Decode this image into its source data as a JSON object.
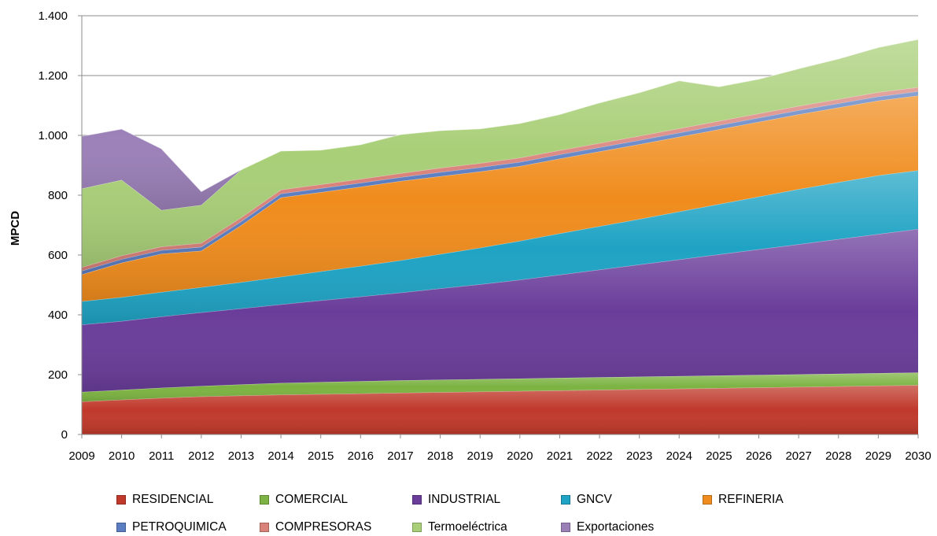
{
  "chart_data": {
    "type": "area",
    "stacked": true,
    "title": "",
    "xlabel": "",
    "ylabel": "MPCD",
    "ylim": [
      0,
      1400
    ],
    "yticks": [
      0,
      200,
      400,
      600,
      800,
      1000,
      1200,
      1400
    ],
    "ytick_labels": [
      "0",
      "200",
      "400",
      "600",
      "800",
      "1.000",
      "1.200",
      "1.400"
    ],
    "grid": "horizontal",
    "legend_position": "bottom",
    "x": [
      "2009",
      "2010",
      "2011",
      "2012",
      "2013",
      "2014",
      "2015",
      "2016",
      "2017",
      "2018",
      "2019",
      "2020",
      "2021",
      "2022",
      "2023",
      "2024",
      "2025",
      "2026",
      "2027",
      "2028",
      "2029",
      "2030"
    ],
    "series": [
      {
        "name": "RESIDENCIAL",
        "color": "#c0392b",
        "values": [
          110,
          116,
          122,
          127,
          130,
          133,
          135,
          137,
          139,
          141,
          143,
          145,
          147,
          149,
          151,
          153,
          155,
          157,
          159,
          161,
          163,
          165
        ]
      },
      {
        "name": "COMERCIAL",
        "color": "#7cb342",
        "values": [
          32,
          33,
          34,
          35,
          37,
          39,
          40,
          41,
          42,
          42,
          42,
          42,
          42,
          42,
          42,
          42,
          42,
          42,
          42,
          42,
          42,
          42
        ]
      },
      {
        "name": "INDUSTRIAL",
        "color": "#6a3d9a",
        "values": [
          225,
          230,
          238,
          246,
          254,
          263,
          273,
          283,
          293,
          305,
          317,
          330,
          345,
          360,
          375,
          390,
          405,
          420,
          435,
          450,
          465,
          480
        ]
      },
      {
        "name": "GNCV",
        "color": "#1fa3c4",
        "values": [
          78,
          80,
          82,
          84,
          88,
          92,
          97,
          102,
          108,
          115,
          122,
          130,
          138,
          145,
          152,
          160,
          168,
          176,
          184,
          190,
          196,
          196
        ]
      },
      {
        "name": "REFINERIA",
        "color": "#f08c1d",
        "values": [
          90,
          115,
          128,
          122,
          190,
          265,
          265,
          265,
          265,
          260,
          255,
          250,
          250,
          250,
          250,
          250,
          250,
          250,
          250,
          250,
          250,
          250
        ]
      },
      {
        "name": "PETROQUIMICA",
        "color": "#5b7ec2",
        "values": [
          12,
          12,
          12,
          13,
          13,
          13,
          13,
          13,
          13,
          14,
          14,
          14,
          14,
          14,
          14,
          14,
          14,
          14,
          14,
          14,
          14,
          14
        ]
      },
      {
        "name": "COMPRESORAS",
        "color": "#d9827a",
        "values": [
          12,
          12,
          12,
          13,
          13,
          13,
          13,
          13,
          13,
          14,
          14,
          14,
          14,
          14,
          14,
          14,
          14,
          14,
          14,
          14,
          14,
          14
        ]
      },
      {
        "name": "Termoeléctrica",
        "color": "#a9cf78",
        "values": [
          263,
          253,
          122,
          127,
          160,
          130,
          115,
          115,
          130,
          125,
          115,
          115,
          120,
          135,
          145,
          160,
          115,
          115,
          125,
          135,
          150,
          160
        ]
      },
      {
        "name": "Exportaciones",
        "color": "#9b80b8",
        "values": [
          175,
          170,
          205,
          45,
          0,
          0,
          0,
          0,
          0,
          0,
          0,
          0,
          0,
          0,
          0,
          0,
          0,
          0,
          0,
          0,
          0,
          0
        ]
      }
    ]
  }
}
